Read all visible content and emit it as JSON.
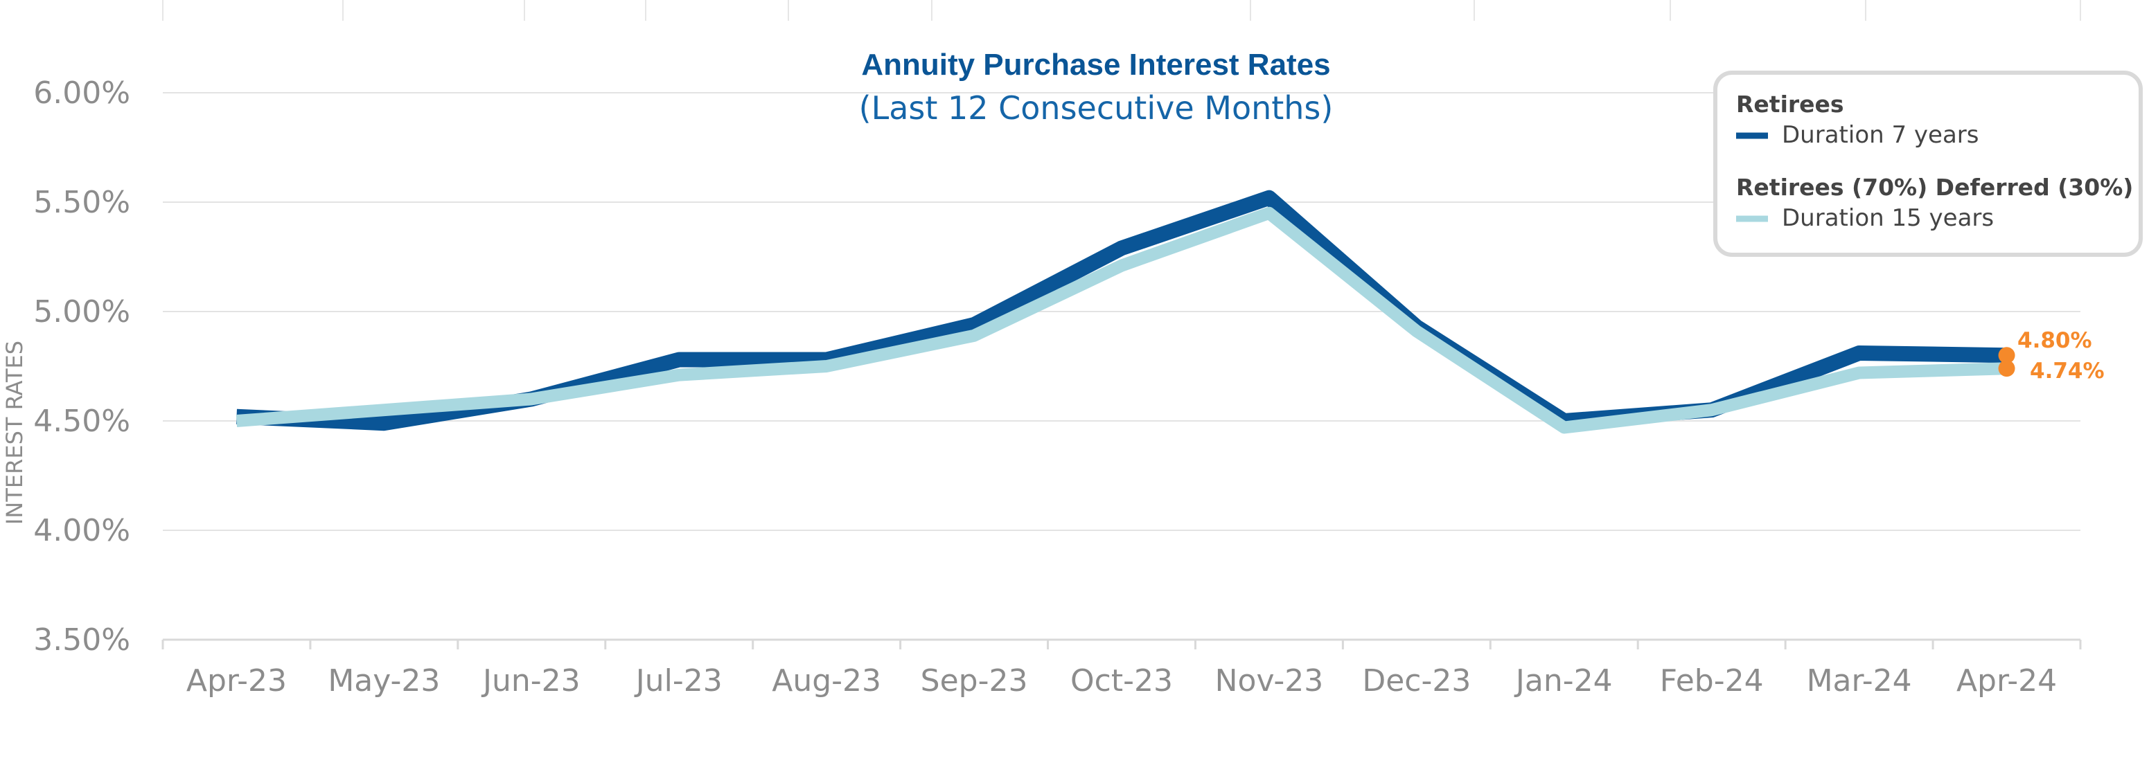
{
  "colors": {
    "series_dark": "#0a5596",
    "series_light": "#a9d8e0",
    "accent": "#f5892a",
    "grid": "#e3e3e3",
    "axis_text": "#8c8c8c",
    "legend_border": "#d9d9d9"
  },
  "chart_data": {
    "type": "line",
    "title": "Annuity Purchase Interest Rates",
    "subtitle": "(Last 12 Consecutive Months)",
    "xlabel": "",
    "ylabel": "INTEREST RATES",
    "ylim": [
      3.5,
      6.0
    ],
    "yticks": [
      3.5,
      4.0,
      4.5,
      5.0,
      5.5,
      6.0
    ],
    "ytick_labels": [
      "3.50%",
      "4.00%",
      "4.50%",
      "5.00%",
      "5.50%",
      "6.00%"
    ],
    "grid": true,
    "categories": [
      "Apr-23",
      "May-23",
      "Jun-23",
      "Jul-23",
      "Aug-23",
      "Sep-23",
      "Oct-23",
      "Nov-23",
      "Dec-23",
      "Jan-24",
      "Feb-24",
      "Mar-24",
      "Apr-24"
    ],
    "series": [
      {
        "name": "Duration 7 years",
        "group": "Retirees",
        "color": "#0a5596",
        "values": [
          4.52,
          4.49,
          4.6,
          4.78,
          4.78,
          4.94,
          5.29,
          5.52,
          4.93,
          4.5,
          4.55,
          4.81,
          4.8
        ]
      },
      {
        "name": "Duration 15 years",
        "group": "Retirees (70%) Deferred (30%)",
        "color": "#a9d8e0",
        "values": [
          4.5,
          4.55,
          4.6,
          4.71,
          4.75,
          4.89,
          5.21,
          5.45,
          4.91,
          4.47,
          4.55,
          4.72,
          4.74
        ]
      }
    ],
    "annotations": [
      {
        "series": 0,
        "index": 12,
        "label": "4.80%"
      },
      {
        "series": 1,
        "index": 12,
        "label": "4.74%"
      }
    ],
    "legend": {
      "placement": "top-right",
      "groups": [
        {
          "heading": "Retirees",
          "label": "Duration 7 years"
        },
        {
          "heading": "Retirees (70%) Deferred (30%)",
          "label": "Duration 15 years"
        }
      ]
    }
  }
}
